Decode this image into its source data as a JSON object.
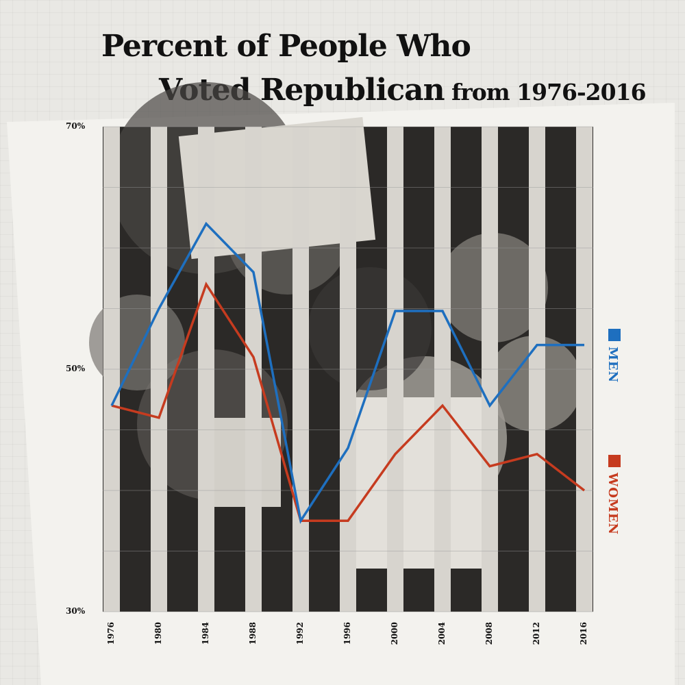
{
  "title": {
    "line1": "Percent of People Who",
    "line2_main": "Voted Republican",
    "line2_small": " from 1976-2016"
  },
  "colors": {
    "men": "#1e6fbf",
    "women": "#c63b1f",
    "photo_dark": "#2b2927",
    "photo_light": "#d7d4ce"
  },
  "legend": {
    "men_label": "MEN",
    "women_label": "WOMEN"
  },
  "chart_data": {
    "type": "line",
    "title": "Percent of People Who Voted Republican from 1976-2016",
    "x": [
      1976,
      1980,
      1984,
      1988,
      1992,
      1996,
      2000,
      2004,
      2008,
      2012,
      2016
    ],
    "ylim": [
      30,
      70
    ],
    "yticks": [
      "70%",
      "50%",
      "30%"
    ],
    "ytick_values": [
      70,
      50,
      30
    ],
    "series": [
      {
        "name": "MEN",
        "values": [
          47.0,
          55.0,
          62.0,
          58.0,
          37.5,
          43.5,
          54.8,
          54.8,
          47.0,
          52.0,
          52.0
        ]
      },
      {
        "name": "WOMEN",
        "values": [
          47.0,
          46.0,
          57.0,
          51.0,
          37.5,
          37.5,
          43.0,
          47.0,
          42.0,
          43.0,
          40.0
        ]
      }
    ],
    "grid": true
  }
}
